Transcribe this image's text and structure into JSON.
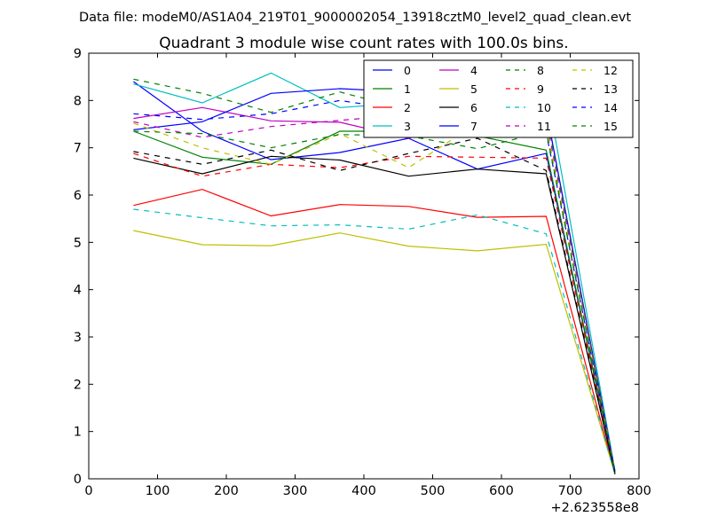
{
  "chart_data": {
    "type": "line",
    "suptitle": "Data file: modeM0/AS1A04_219T01_9000002054_13918cztM0_level2_quad_clean.evt",
    "title": "Quadrant 3 module wise count rates with 100.0s bins.",
    "xlabel": "",
    "ylabel": "",
    "x_offset_label": "+2.623558e8",
    "xlim": [
      0,
      800
    ],
    "ylim": [
      0,
      9
    ],
    "xticks": [
      0,
      100,
      200,
      300,
      400,
      500,
      600,
      700,
      800
    ],
    "yticks": [
      0,
      1,
      2,
      3,
      4,
      5,
      6,
      7,
      8,
      9
    ],
    "grid": false,
    "legend_position": "top-right",
    "legend_columns": 4,
    "x": [
      65,
      165,
      265,
      365,
      465,
      565,
      665,
      765
    ],
    "series": [
      {
        "name": "0",
        "color": "#0000ff",
        "style": "solid",
        "values": [
          8.4,
          7.35,
          6.75,
          6.9,
          7.2,
          6.55,
          6.88,
          0.15
        ]
      },
      {
        "name": "1",
        "color": "#008000",
        "style": "solid",
        "values": [
          7.35,
          6.8,
          6.65,
          7.35,
          7.35,
          7.25,
          6.95,
          0.15
        ]
      },
      {
        "name": "2",
        "color": "#ff0000",
        "style": "solid",
        "values": [
          5.78,
          6.12,
          5.56,
          5.8,
          5.76,
          5.53,
          5.55,
          0.1
        ]
      },
      {
        "name": "3",
        "color": "#00bfbf",
        "style": "solid",
        "values": [
          8.35,
          7.95,
          8.58,
          7.85,
          7.95,
          8.25,
          8.28,
          0.18
        ]
      },
      {
        "name": "4",
        "color": "#bf00bf",
        "style": "solid",
        "values": [
          7.62,
          7.85,
          7.57,
          7.54,
          7.2,
          7.7,
          7.8,
          0.15
        ]
      },
      {
        "name": "5",
        "color": "#bfbf00",
        "style": "solid",
        "values": [
          5.25,
          4.95,
          4.93,
          5.2,
          4.92,
          4.82,
          4.96,
          0.1
        ]
      },
      {
        "name": "6",
        "color": "#000000",
        "style": "solid",
        "values": [
          6.78,
          6.45,
          6.82,
          6.74,
          6.4,
          6.55,
          6.45,
          0.1
        ]
      },
      {
        "name": "7",
        "color": "#0000ff",
        "style": "solid",
        "values": [
          7.38,
          7.55,
          8.15,
          8.25,
          8.18,
          8.28,
          7.8,
          0.15
        ]
      },
      {
        "name": "8",
        "color": "#008000",
        "style": "dashed",
        "values": [
          8.45,
          8.15,
          7.75,
          8.18,
          7.8,
          8.15,
          7.72,
          0.15
        ]
      },
      {
        "name": "9",
        "color": "#ff0000",
        "style": "dashed",
        "values": [
          6.88,
          6.4,
          6.65,
          6.58,
          6.82,
          6.8,
          6.78,
          0.12
        ]
      },
      {
        "name": "10",
        "color": "#00bfbf",
        "style": "dashed",
        "values": [
          5.7,
          5.52,
          5.35,
          5.37,
          5.28,
          5.58,
          5.18,
          0.1
        ]
      },
      {
        "name": "11",
        "color": "#bf00bf",
        "style": "dashed",
        "values": [
          7.55,
          7.22,
          7.45,
          7.58,
          7.7,
          8.02,
          7.6,
          0.15
        ]
      },
      {
        "name": "12",
        "color": "#bfbf00",
        "style": "dashed",
        "values": [
          7.52,
          7.0,
          6.65,
          7.3,
          6.58,
          7.52,
          7.45,
          0.15
        ]
      },
      {
        "name": "13",
        "color": "#000000",
        "style": "dashed",
        "values": [
          6.92,
          6.65,
          6.95,
          6.52,
          6.88,
          7.2,
          6.52,
          0.12
        ]
      },
      {
        "name": "14",
        "color": "#0000ff",
        "style": "dashed",
        "values": [
          7.72,
          7.6,
          7.72,
          8.0,
          7.78,
          7.7,
          7.32,
          0.15
        ]
      },
      {
        "name": "15",
        "color": "#008000",
        "style": "dashed",
        "values": [
          7.35,
          7.3,
          7.0,
          7.28,
          7.25,
          6.98,
          7.35,
          0.12
        ]
      }
    ]
  }
}
